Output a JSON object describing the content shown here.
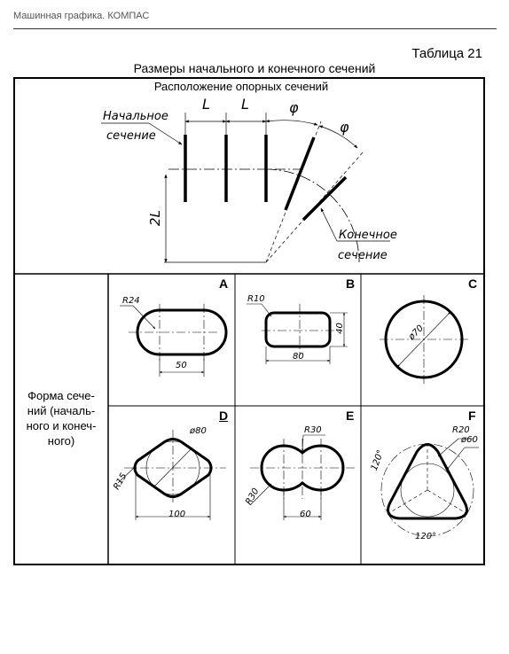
{
  "page": {
    "running_header": "Машинная графика. КОМПАС",
    "table_number": "Таблица 21",
    "table_caption": "Размеры начального и конечного сечений"
  },
  "top_row": {
    "caption": "Расположение опорных сечений",
    "start_label_line1": "Начальное",
    "start_label_line2": "сечение",
    "end_label_line1": "Конечное",
    "end_label_line2": "сечение",
    "dim_spacing": "L",
    "dim_angle": "φ",
    "dim_height": "2L"
  },
  "side_label": {
    "lines": [
      "Форма сече-",
      "ний (началь-",
      "ного и конеч-",
      "ного)"
    ]
  },
  "shapes": [
    {
      "letter": "A",
      "dims": [
        "R24",
        "50"
      ]
    },
    {
      "letter": "B",
      "dims": [
        "R10",
        "40",
        "80"
      ]
    },
    {
      "letter": "C",
      "dims": [
        "ø70"
      ]
    },
    {
      "letter": "D",
      "dims": [
        "ø80",
        "R15",
        "100"
      ]
    },
    {
      "letter": "E",
      "dims": [
        "R30",
        "R30",
        "60"
      ]
    },
    {
      "letter": "F",
      "dims": [
        "R20",
        "ø60",
        "120°",
        "120°"
      ]
    }
  ]
}
